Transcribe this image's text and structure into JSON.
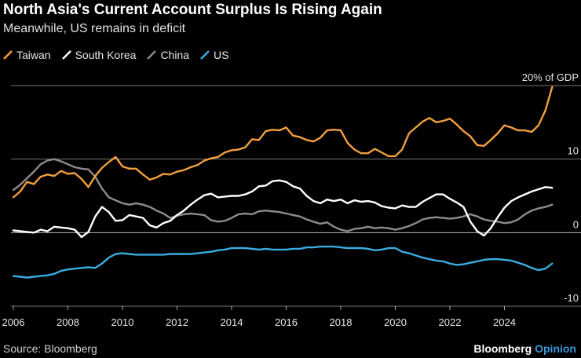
{
  "title": "North Asia's Current Account Surplus Is Rising Again",
  "subtitle": "Meanwhile, US remains in deficit",
  "source": "Source: Bloomberg",
  "brand": {
    "name": "Bloomberg",
    "product": "Opinion"
  },
  "chart_data": {
    "type": "line",
    "title": "North Asia's Current Account Surplus Is Rising Again",
    "subtitle": "Meanwhile, US remains in deficit",
    "xlabel": "",
    "ylabel": "% of GDP",
    "xlim": [
      2006,
      2026
    ],
    "ylim": [
      -10,
      20
    ],
    "y_ticks": [
      20,
      10,
      0,
      -10
    ],
    "y_tick_labels": [
      "20% of GDP",
      "10",
      "0",
      "-10"
    ],
    "x_ticks": [
      2006,
      2008,
      2010,
      2012,
      2014,
      2016,
      2018,
      2020,
      2022,
      2024
    ],
    "x_tick_labels": [
      "2006",
      "2008",
      "2010",
      "2012",
      "2014",
      "2016",
      "2018",
      "2020",
      "2022",
      "2024"
    ],
    "legend_position": "top-left",
    "series": [
      {
        "name": "Taiwan",
        "color": "#f2a03d",
        "x": [
          2006,
          2006.25,
          2006.5,
          2006.75,
          2007,
          2007.25,
          2007.5,
          2007.75,
          2008,
          2008.25,
          2008.5,
          2008.75,
          2009,
          2009.25,
          2009.5,
          2009.75,
          2010,
          2010.25,
          2010.5,
          2010.75,
          2011,
          2011.25,
          2011.5,
          2011.75,
          2012,
          2012.25,
          2012.5,
          2012.75,
          2013,
          2013.25,
          2013.5,
          2013.75,
          2014,
          2014.25,
          2014.5,
          2014.75,
          2015,
          2015.25,
          2015.5,
          2015.75,
          2016,
          2016.25,
          2016.5,
          2016.75,
          2017,
          2017.25,
          2017.5,
          2017.75,
          2018,
          2018.25,
          2018.5,
          2018.75,
          2019,
          2019.25,
          2019.5,
          2019.75,
          2020,
          2020.25,
          2020.5,
          2020.75,
          2021,
          2021.25,
          2021.5,
          2021.75,
          2022,
          2022.25,
          2022.5,
          2022.75,
          2023,
          2023.25,
          2023.5,
          2023.75,
          2024,
          2024.25,
          2024.5,
          2024.75,
          2025,
          2025.25,
          2025.5,
          2025.75
        ],
        "values": [
          4.8,
          5.6,
          6.9,
          6.6,
          7.6,
          7.9,
          7.7,
          8.4,
          8.0,
          8.1,
          7.3,
          6.2,
          7.7,
          8.8,
          9.6,
          10.3,
          9.0,
          8.7,
          8.7,
          7.9,
          7.2,
          7.5,
          8.0,
          7.9,
          8.3,
          8.5,
          8.9,
          9.2,
          9.8,
          10.1,
          10.3,
          10.9,
          11.2,
          11.3,
          11.6,
          12.7,
          12.6,
          13.8,
          14.0,
          13.9,
          14.3,
          13.2,
          13.0,
          12.6,
          12.4,
          12.9,
          13.9,
          14.0,
          13.9,
          12.2,
          11.3,
          10.8,
          10.8,
          11.4,
          10.9,
          10.4,
          10.4,
          11.3,
          13.5,
          14.3,
          15.1,
          15.6,
          15.0,
          15.2,
          15.5,
          14.7,
          13.8,
          13.1,
          11.9,
          11.8,
          12.6,
          13.5,
          14.6,
          14.3,
          13.9,
          13.9,
          13.7,
          14.6,
          16.6,
          19.8
        ]
      },
      {
        "name": "South Korea",
        "color": "#ffffff",
        "x": [
          2006,
          2006.25,
          2006.5,
          2006.75,
          2007,
          2007.25,
          2007.5,
          2007.75,
          2008,
          2008.25,
          2008.5,
          2008.75,
          2009,
          2009.25,
          2009.5,
          2009.75,
          2010,
          2010.25,
          2010.5,
          2010.75,
          2011,
          2011.25,
          2011.5,
          2011.75,
          2012,
          2012.25,
          2012.5,
          2012.75,
          2013,
          2013.25,
          2013.5,
          2013.75,
          2014,
          2014.25,
          2014.5,
          2014.75,
          2015,
          2015.25,
          2015.5,
          2015.75,
          2016,
          2016.25,
          2016.5,
          2016.75,
          2017,
          2017.25,
          2017.5,
          2017.75,
          2018,
          2018.25,
          2018.5,
          2018.75,
          2019,
          2019.25,
          2019.5,
          2019.75,
          2020,
          2020.25,
          2020.5,
          2020.75,
          2021,
          2021.25,
          2021.5,
          2021.75,
          2022,
          2022.25,
          2022.5,
          2022.75,
          2023,
          2023.25,
          2023.5,
          2023.75,
          2024,
          2024.25,
          2024.5,
          2024.75,
          2025,
          2025.25,
          2025.5,
          2025.75
        ],
        "values": [
          0.3,
          0.2,
          0.1,
          0.0,
          0.4,
          0.2,
          0.8,
          0.7,
          0.6,
          0.4,
          -0.6,
          0.1,
          2.2,
          3.5,
          2.8,
          1.6,
          1.7,
          2.4,
          2.2,
          2.0,
          1.0,
          0.7,
          1.3,
          1.6,
          2.4,
          3.0,
          3.8,
          4.5,
          5.1,
          5.3,
          4.8,
          4.9,
          5.0,
          5.0,
          5.2,
          5.6,
          6.3,
          6.4,
          7.0,
          7.1,
          6.9,
          6.3,
          6.0,
          5.0,
          4.3,
          4.0,
          4.5,
          4.3,
          4.5,
          4.0,
          4.4,
          4.2,
          4.3,
          4.1,
          3.6,
          3.4,
          3.3,
          3.7,
          3.5,
          3.5,
          4.2,
          4.7,
          5.2,
          5.2,
          4.6,
          4.1,
          3.5,
          1.5,
          0.2,
          -0.4,
          0.6,
          2.1,
          3.4,
          4.3,
          4.8,
          5.2,
          5.6,
          5.9,
          6.2,
          6.1
        ]
      },
      {
        "name": "China",
        "color": "#8c8c8c",
        "x": [
          2006,
          2006.25,
          2006.5,
          2006.75,
          2007,
          2007.25,
          2007.5,
          2007.75,
          2008,
          2008.25,
          2008.5,
          2008.75,
          2009,
          2009.25,
          2009.5,
          2009.75,
          2010,
          2010.25,
          2010.5,
          2010.75,
          2011,
          2011.25,
          2011.5,
          2011.75,
          2012,
          2012.25,
          2012.5,
          2012.75,
          2013,
          2013.25,
          2013.5,
          2013.75,
          2014,
          2014.25,
          2014.5,
          2014.75,
          2015,
          2015.25,
          2015.5,
          2015.75,
          2016,
          2016.25,
          2016.5,
          2016.75,
          2017,
          2017.25,
          2017.5,
          2017.75,
          2018,
          2018.25,
          2018.5,
          2018.75,
          2019,
          2019.25,
          2019.5,
          2019.75,
          2020,
          2020.25,
          2020.5,
          2020.75,
          2021,
          2021.25,
          2021.5,
          2021.75,
          2022,
          2022.25,
          2022.5,
          2022.75,
          2023,
          2023.25,
          2023.5,
          2023.75,
          2024,
          2024.25,
          2024.5,
          2024.75,
          2025,
          2025.25,
          2025.5,
          2025.75
        ],
        "values": [
          5.8,
          6.5,
          7.4,
          8.3,
          9.3,
          9.8,
          10.0,
          9.7,
          9.3,
          8.9,
          8.7,
          8.6,
          7.6,
          6.0,
          4.8,
          4.4,
          4.0,
          3.8,
          4.0,
          3.8,
          3.5,
          3.0,
          2.6,
          2.0,
          2.3,
          2.5,
          2.6,
          2.5,
          2.4,
          1.7,
          1.5,
          1.6,
          2.0,
          2.5,
          2.6,
          2.5,
          2.9,
          3.0,
          2.9,
          2.8,
          2.6,
          2.4,
          2.2,
          1.8,
          1.5,
          1.2,
          1.4,
          0.8,
          0.4,
          0.2,
          0.5,
          0.6,
          0.8,
          0.6,
          0.7,
          0.6,
          0.4,
          0.6,
          0.9,
          1.3,
          1.8,
          2.0,
          2.1,
          2.0,
          1.9,
          2.0,
          2.2,
          2.5,
          2.2,
          1.8,
          1.6,
          1.5,
          1.3,
          1.4,
          1.8,
          2.5,
          3.0,
          3.3,
          3.5,
          3.8
        ]
      },
      {
        "name": "US",
        "color": "#3aabdf",
        "x": [
          2006,
          2006.25,
          2006.5,
          2006.75,
          2007,
          2007.25,
          2007.5,
          2007.75,
          2008,
          2008.25,
          2008.5,
          2008.75,
          2009,
          2009.25,
          2009.5,
          2009.75,
          2010,
          2010.25,
          2010.5,
          2010.75,
          2011,
          2011.25,
          2011.5,
          2011.75,
          2012,
          2012.25,
          2012.5,
          2012.75,
          2013,
          2013.25,
          2013.5,
          2013.75,
          2014,
          2014.25,
          2014.5,
          2014.75,
          2015,
          2015.25,
          2015.5,
          2015.75,
          2016,
          2016.25,
          2016.5,
          2016.75,
          2017,
          2017.25,
          2017.5,
          2017.75,
          2018,
          2018.25,
          2018.5,
          2018.75,
          2019,
          2019.25,
          2019.5,
          2019.75,
          2020,
          2020.25,
          2020.5,
          2020.75,
          2021,
          2021.25,
          2021.5,
          2021.75,
          2022,
          2022.25,
          2022.5,
          2022.75,
          2023,
          2023.25,
          2023.5,
          2023.75,
          2024,
          2024.25,
          2024.5,
          2024.75,
          2025,
          2025.25,
          2025.5,
          2025.75
        ],
        "values": [
          -5.9,
          -6.0,
          -6.1,
          -6.0,
          -5.9,
          -5.8,
          -5.6,
          -5.2,
          -5.0,
          -4.9,
          -4.8,
          -4.7,
          -4.8,
          -4.2,
          -3.4,
          -2.9,
          -2.8,
          -2.9,
          -3.0,
          -3.0,
          -3.0,
          -3.0,
          -3.0,
          -2.9,
          -2.9,
          -2.9,
          -2.9,
          -2.8,
          -2.7,
          -2.6,
          -2.4,
          -2.3,
          -2.1,
          -2.1,
          -2.1,
          -2.2,
          -2.3,
          -2.2,
          -2.3,
          -2.3,
          -2.3,
          -2.2,
          -2.2,
          -2.0,
          -2.0,
          -1.9,
          -1.9,
          -1.9,
          -2.0,
          -2.1,
          -2.1,
          -2.1,
          -2.2,
          -2.4,
          -2.3,
          -2.1,
          -2.1,
          -2.6,
          -2.8,
          -3.1,
          -3.4,
          -3.6,
          -3.8,
          -3.9,
          -4.2,
          -4.4,
          -4.3,
          -4.1,
          -3.9,
          -3.7,
          -3.6,
          -3.6,
          -3.7,
          -3.8,
          -4.1,
          -4.4,
          -4.8,
          -5.1,
          -4.9,
          -4.2
        ]
      }
    ]
  }
}
